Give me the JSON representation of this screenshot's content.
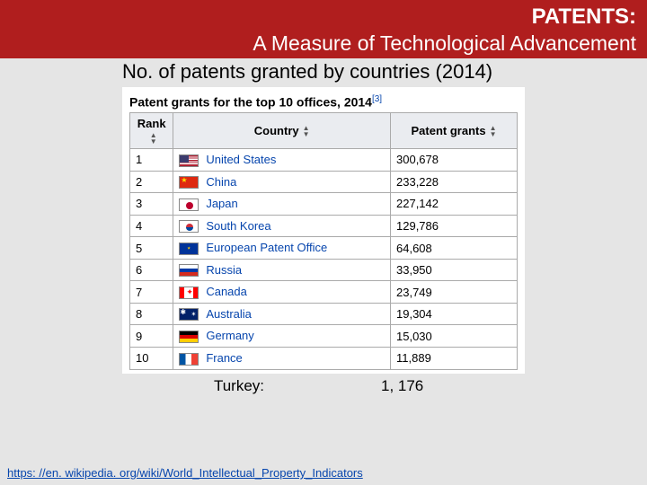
{
  "header": {
    "line1": "PATENTS:",
    "line2": "A Measure of Technological Advancement"
  },
  "subtitle": "No. of patents granted by countries (2014)",
  "table": {
    "title": "Patent grants for the top 10 offices, 2014",
    "ref": "[3]",
    "columns": [
      "Rank",
      "Country",
      "Patent grants"
    ],
    "rows": [
      {
        "rank": "1",
        "flag": "flag-us",
        "country": "United States",
        "grants": "300,678"
      },
      {
        "rank": "2",
        "flag": "flag-cn",
        "country": "China",
        "grants": "233,228"
      },
      {
        "rank": "3",
        "flag": "flag-jp",
        "country": "Japan",
        "grants": "227,142"
      },
      {
        "rank": "4",
        "flag": "flag-kr",
        "country": "South Korea",
        "grants": "129,786"
      },
      {
        "rank": "5",
        "flag": "flag-eu",
        "country": "European Patent Office",
        "grants": "64,608"
      },
      {
        "rank": "6",
        "flag": "flag-ru",
        "country": "Russia",
        "grants": "33,950"
      },
      {
        "rank": "7",
        "flag": "flag-ca",
        "country": "Canada",
        "grants": "23,749"
      },
      {
        "rank": "8",
        "flag": "flag-au",
        "country": "Australia",
        "grants": "19,304"
      },
      {
        "rank": "9",
        "flag": "flag-de",
        "country": "Germany",
        "grants": "15,030"
      },
      {
        "rank": "10",
        "flag": "flag-fr",
        "country": "France",
        "grants": "11,889"
      }
    ]
  },
  "turkey": {
    "label": "Turkey:",
    "value": "1, 176"
  },
  "source": {
    "prefix": "https: //en. wikipedia. org/wiki/",
    "page": "World_Intellectual_Property_Indicators"
  },
  "colors": {
    "header_bg": "#b01e1e",
    "page_bg": "#e5e5e5",
    "link": "#0645ad",
    "th_bg": "#eaecf0",
    "border": "#aaaaaa"
  }
}
